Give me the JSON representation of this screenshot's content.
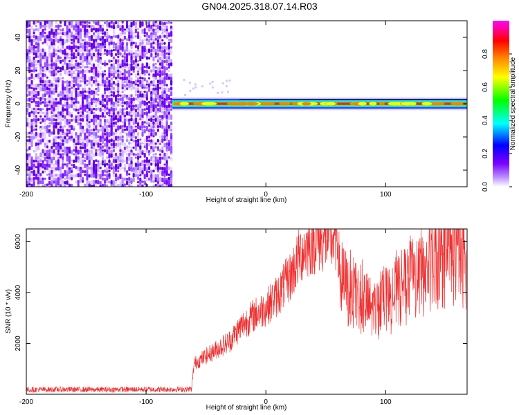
{
  "title": "GN04.2025.318.07.14.R03",
  "chart_data": [
    {
      "type": "heatmap",
      "panel": "spectrogram",
      "xlabel": "Height of straight line (km)",
      "ylabel": "Frequency (Hz)",
      "xlim": [
        -200,
        168
      ],
      "ylim": [
        -50,
        50
      ],
      "xticks": [
        -200,
        -100,
        0,
        100
      ],
      "yticks": [
        -40,
        -20,
        0,
        20,
        40
      ],
      "colorbar": {
        "label": "Normalized spectral amplitude",
        "range": [
          0.0,
          1.0
        ],
        "ticks": [
          0.0,
          0.2,
          0.4,
          0.6,
          0.8
        ],
        "colormap": [
          "#ffffff",
          "#7b00ff",
          "#0000ff",
          "#00ffff",
          "#00ff00",
          "#ffff00",
          "#ff8000",
          "#ff0000",
          "#ff00ff"
        ]
      },
      "noise_region": {
        "x_range": [
          -200,
          -78
        ],
        "freq_range": [
          -50,
          50
        ],
        "amplitude": 0.05
      },
      "signal_band": {
        "x_range": [
          -78,
          168
        ],
        "freq": 0,
        "width_hz": 6,
        "peak_amplitude": 1.0
      }
    },
    {
      "type": "line",
      "panel": "snr",
      "xlabel": "Height of straight line (km)",
      "ylabel": "SNR (10 * v/v)",
      "xlim": [
        -200,
        168
      ],
      "ylim": [
        0,
        6500
      ],
      "xticks": [
        -200,
        -100,
        0,
        100
      ],
      "yticks": [
        2000,
        4000,
        6000
      ],
      "color": "#ee3030",
      "series": [
        {
          "x": [
            -200,
            -170,
            -140,
            -110,
            -80,
            -62,
            -60,
            -50,
            -40,
            -30,
            -20,
            -10,
            0,
            10,
            20,
            30,
            40,
            50,
            60,
            62,
            70,
            80,
            90,
            100,
            110,
            120,
            130,
            140,
            150,
            160,
            168
          ],
          "values": [
            180,
            190,
            180,
            190,
            190,
            200,
            1200,
            1500,
            1800,
            2100,
            2700,
            3100,
            3400,
            3900,
            4600,
            5600,
            6000,
            6100,
            6100,
            4500,
            4000,
            3700,
            3300,
            3600,
            4000,
            4400,
            4700,
            5000,
            5300,
            5500,
            5300
          ]
        }
      ]
    }
  ]
}
